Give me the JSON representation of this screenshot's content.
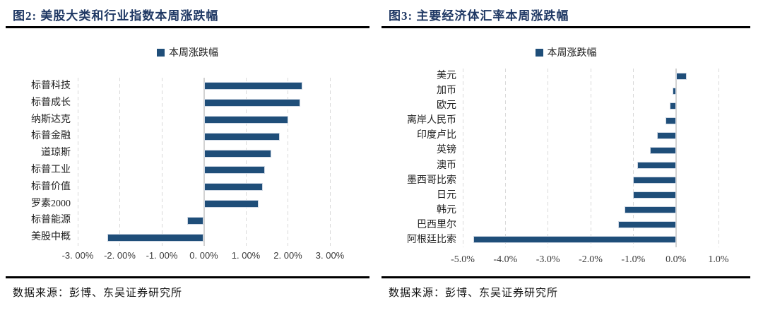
{
  "colors": {
    "bar": "#1F4E79",
    "title_text": "#1F3864",
    "rule": "#000000",
    "gridline": "#d9d9d9",
    "zero_axis": "#d2d2d2",
    "background": "#ffffff"
  },
  "figure2": {
    "title": "图2: 美股大类和行业指数本周涨跌幅",
    "legend_label": "本周涨跌幅",
    "source": "数据来源：彭博、东吴证券研究所"
  },
  "figure3": {
    "title": "图3: 主要经济体汇率本周涨跌幅",
    "legend_label": "本周涨跌幅",
    "source": "数据来源：彭博、东吴证券研究所"
  },
  "chart_data": [
    {
      "type": "bar",
      "orientation": "horizontal",
      "title": "图2: 美股大类和行业指数本周涨跌幅",
      "legend": [
        "本周涨跌幅"
      ],
      "legend_position": "top-center",
      "categories": [
        "标普科技",
        "标普成长",
        "纳斯达克",
        "标普金融",
        "道琼斯",
        "标普工业",
        "标普价值",
        "罗素2000",
        "标普能源",
        "美股中概"
      ],
      "series": [
        {
          "name": "本周涨跌幅",
          "values": [
            2.35,
            2.3,
            2.0,
            1.8,
            1.6,
            1.45,
            1.4,
            1.3,
            -0.4,
            -2.3
          ]
        }
      ],
      "unit": "%",
      "xlim": [
        -3,
        3
      ],
      "xticks": [
        -3,
        -2,
        -1,
        0,
        1,
        2,
        3
      ],
      "xtick_labels": [
        "-3. 00%",
        "-2. 00%",
        "-1. 00%",
        "0. 00%",
        "1. 00%",
        "2. 00%",
        "3. 00%"
      ],
      "grid": "vertical-dashed",
      "bar_color": "#1F4E79"
    },
    {
      "type": "bar",
      "orientation": "horizontal",
      "title": "图3: 主要经济体汇率本周涨跌幅",
      "legend": [
        "本周涨跌幅"
      ],
      "legend_position": "top-center",
      "categories": [
        "美元",
        "加币",
        "欧元",
        "离岸人民币",
        "印度卢比",
        "英镑",
        "澳币",
        "墨西哥比索",
        "日元",
        "韩元",
        "巴西里尔",
        "阿根廷比索"
      ],
      "series": [
        {
          "name": "本周涨跌幅",
          "values": [
            0.25,
            -0.08,
            -0.15,
            -0.25,
            -0.45,
            -0.6,
            -0.9,
            -1.0,
            -1.0,
            -1.2,
            -1.35,
            -4.75
          ]
        }
      ],
      "unit": "%",
      "xlim": [
        -5,
        1
      ],
      "xticks": [
        -5,
        -4,
        -3,
        -2,
        -1,
        0,
        1
      ],
      "xtick_labels": [
        "-5.0%",
        "-4.0%",
        "-3.0%",
        "-2.0%",
        "-1.0%",
        "0.0%",
        "1.0%"
      ],
      "grid": "vertical-dashed",
      "bar_color": "#1F4E79"
    }
  ]
}
